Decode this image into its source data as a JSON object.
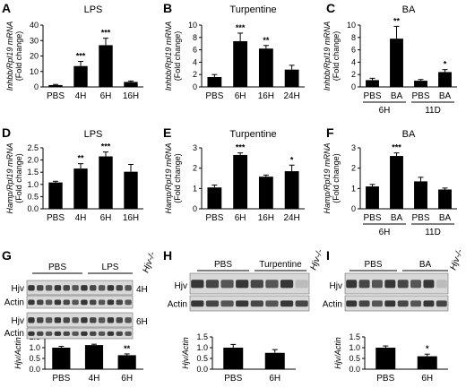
{
  "chart_data": [
    {
      "panel": "A",
      "type": "bar",
      "title": "LPS",
      "ylabel_lines": [
        "Inhbb/Rpl19 mRNA",
        "(Fold change)"
      ],
      "categories": [
        "PBS",
        "4H",
        "6H",
        "16H"
      ],
      "values": [
        1.2,
        13.5,
        27,
        3.2
      ],
      "errors": [
        0.4,
        3,
        4.5,
        0.6
      ],
      "signif": [
        "",
        "***",
        "***",
        ""
      ],
      "ylim": [
        0,
        40
      ],
      "yticks": [
        "0",
        "10",
        "20",
        "30",
        "40"
      ]
    },
    {
      "panel": "B",
      "type": "bar",
      "title": "Turpentine",
      "ylabel_lines": [
        "Inhbb/Rpl19 mRNA",
        "(Fold change)"
      ],
      "categories": [
        "PBS",
        "6H",
        "16H",
        "24H"
      ],
      "values": [
        1.6,
        7.4,
        6.2,
        2.8
      ],
      "errors": [
        0.4,
        1.3,
        0.5,
        0.7
      ],
      "signif": [
        "",
        "***",
        "**",
        ""
      ],
      "ylim": [
        0,
        10
      ],
      "yticks": [
        "0",
        "2",
        "4",
        "6",
        "8",
        "10"
      ]
    },
    {
      "panel": "C",
      "type": "bar",
      "title": "BA",
      "ylabel_lines": [
        "Inhbb/Rpl19 mRNA",
        "(Fold change)"
      ],
      "categories": [
        "PBS",
        "BA",
        "PBS",
        "BA"
      ],
      "groups": [
        "6H",
        "11D"
      ],
      "values": [
        1.1,
        7.8,
        1.0,
        2.4
      ],
      "errors": [
        0.3,
        2.0,
        0.2,
        0.4
      ],
      "signif": [
        "",
        "**",
        "",
        "*"
      ],
      "ylim": [
        0,
        10
      ],
      "yticks": [
        "0",
        "2",
        "4",
        "6",
        "8",
        "10"
      ]
    },
    {
      "panel": "D",
      "type": "bar",
      "title": "LPS",
      "ylabel_lines": [
        "Hamp/Rpl19 mRNA",
        "(Fold change)"
      ],
      "categories": [
        "PBS",
        "4H",
        "6H",
        "16H"
      ],
      "values": [
        1.08,
        1.65,
        2.15,
        1.52
      ],
      "errors": [
        0.05,
        0.2,
        0.18,
        0.3
      ],
      "signif": [
        "",
        "**",
        "***",
        ""
      ],
      "ylim": [
        0,
        2.5
      ],
      "yticks": [
        "0.0",
        "0.5",
        "1.0",
        "1.5",
        "2.0",
        "2.5"
      ]
    },
    {
      "panel": "E",
      "type": "bar",
      "title": "Turpentine",
      "ylabel_lines": [
        "Hamp/Rpl19 mRNA",
        "(Fold change)"
      ],
      "categories": [
        "PBS",
        "6H",
        "16H",
        "24H"
      ],
      "values": [
        1.05,
        2.65,
        1.58,
        1.85
      ],
      "errors": [
        0.12,
        0.1,
        0.08,
        0.3
      ],
      "signif": [
        "",
        "***",
        "",
        "*"
      ],
      "ylim": [
        0,
        3
      ],
      "yticks": [
        "0",
        "1",
        "2",
        "3"
      ]
    },
    {
      "panel": "F",
      "type": "bar",
      "title": "BA",
      "ylabel_lines": [
        "Hamp/Rpl19 mRNA",
        "(Fold change)"
      ],
      "categories": [
        "PBS",
        "BA",
        "PBS",
        "BA"
      ],
      "groups": [
        "6H",
        "11D"
      ],
      "values": [
        1.1,
        2.6,
        1.35,
        0.95
      ],
      "errors": [
        0.1,
        0.15,
        0.2,
        0.07
      ],
      "signif": [
        "",
        "***",
        "",
        ""
      ],
      "ylim": [
        0,
        3
      ],
      "yticks": [
        "0",
        "1",
        "2",
        "3"
      ]
    },
    {
      "panel": "G",
      "type": "bar",
      "title": "",
      "ylabel_lines": [
        "Hjv/Actin"
      ],
      "categories": [
        "PBS",
        "4H",
        "6H"
      ],
      "values": [
        1.0,
        1.12,
        0.65
      ],
      "errors": [
        0.06,
        0.04,
        0.06
      ],
      "signif": [
        "",
        "",
        "**"
      ],
      "ylim": [
        0,
        1.5
      ],
      "yticks": [
        "0.0",
        "0.5",
        "1.0",
        "1.5"
      ]
    },
    {
      "panel": "H",
      "type": "bar",
      "title": "",
      "ylabel_lines": [
        "Hjv/Actin"
      ],
      "categories": [
        "PBS",
        "6H"
      ],
      "values": [
        1.0,
        0.76
      ],
      "errors": [
        0.15,
        0.15
      ],
      "signif": [
        "",
        ""
      ],
      "ylim": [
        0,
        1.5
      ],
      "yticks": [
        "0.0",
        "0.5",
        "1.0",
        "1.5"
      ]
    },
    {
      "panel": "I",
      "type": "bar",
      "title": "",
      "ylabel_lines": [
        "Hjv/Actin"
      ],
      "categories": [
        "PBS",
        "6H"
      ],
      "values": [
        1.0,
        0.6
      ],
      "errors": [
        0.08,
        0.1
      ],
      "signif": [
        "",
        "*"
      ],
      "ylim": [
        0,
        1.5
      ],
      "yticks": [
        "0.0",
        "0.5",
        "1.0",
        "1.5"
      ]
    }
  ],
  "blots": [
    {
      "panel": "G",
      "headers": [
        "PBS",
        "LPS",
        "Hjv-/-"
      ],
      "rows": [
        "Hjv",
        "Actin",
        "Hjv",
        "Actin"
      ],
      "timepoints": [
        "4H",
        "6H"
      ]
    },
    {
      "panel": "H",
      "headers": [
        "PBS",
        "Turpentine",
        "Hjv-/-"
      ],
      "rows": [
        "Hjv",
        "Actin"
      ]
    },
    {
      "panel": "I",
      "headers": [
        "PBS",
        "BA",
        "Hjv-/-"
      ],
      "rows": [
        "Hjv",
        "Actin"
      ]
    }
  ],
  "colors": {
    "bar": "#000000",
    "blot_bg": "#d8d8d8",
    "band": "#1a1a1a"
  }
}
